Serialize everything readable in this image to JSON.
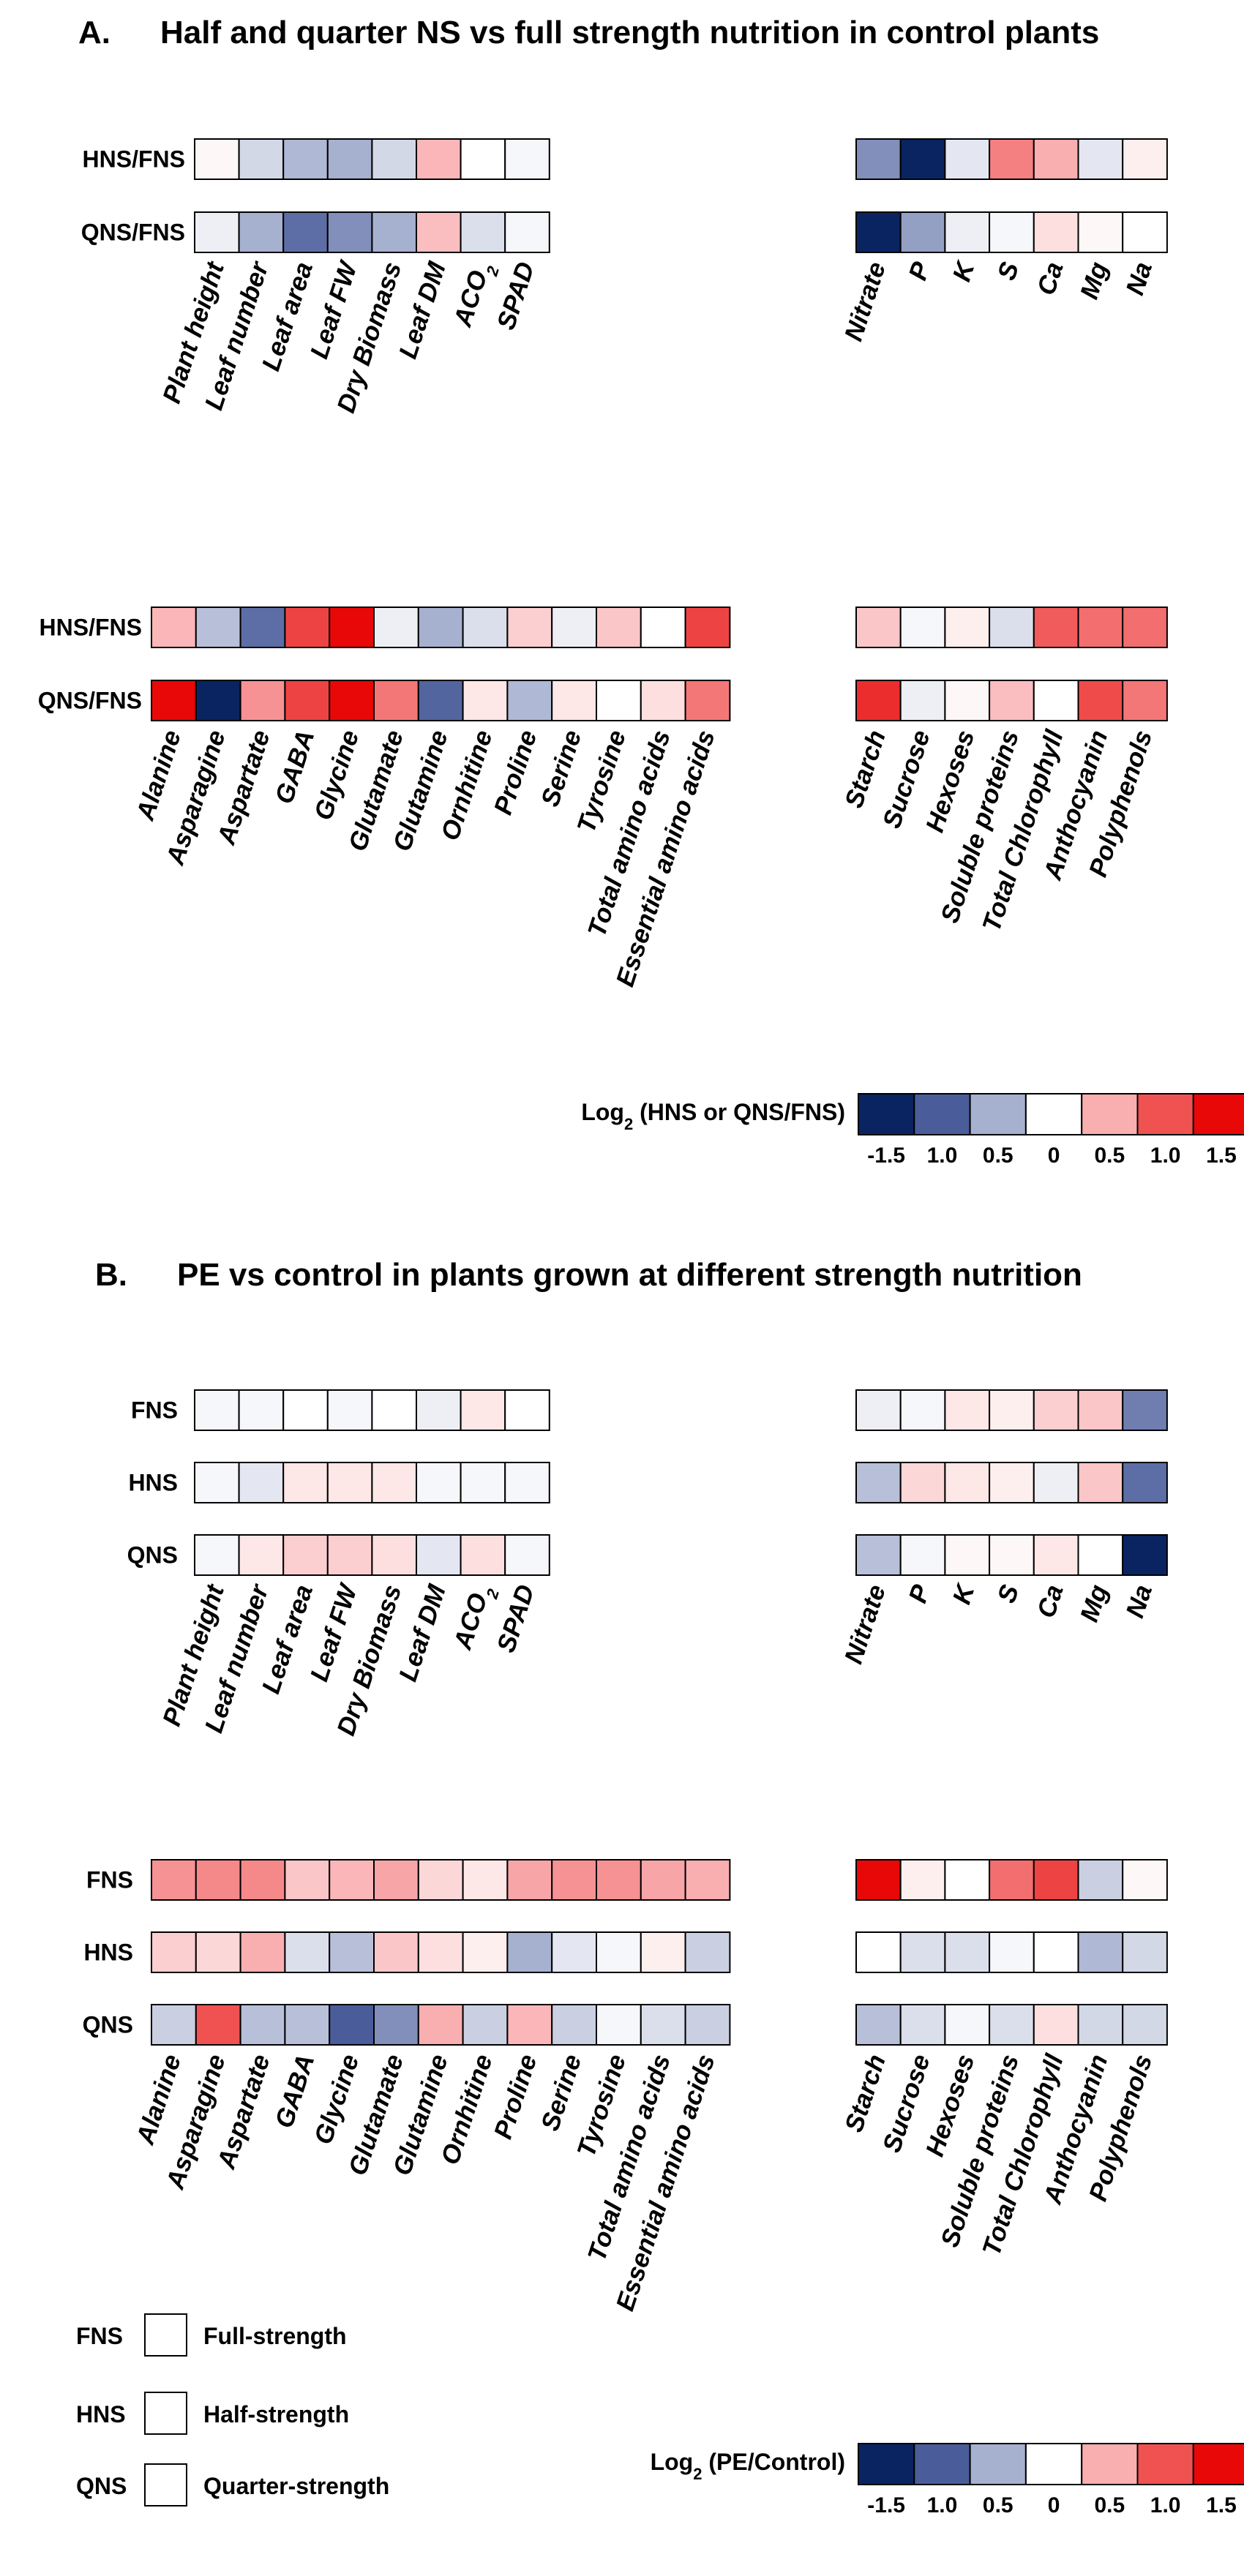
{
  "chart_data": [
    {
      "type": "heatmap",
      "panel": "A.",
      "title": "Half and quarter NS vs full strength nutrition in control plants",
      "blocks": [
        {
          "id": "A-growth",
          "rows": [
            "HNS/FNS",
            "QNS/FNS"
          ],
          "columns": [
            "Plant height",
            "Leaf number",
            "Leaf area",
            "Leaf FW",
            "Dry Biomass",
            "Leaf DM",
            "ACO2",
            "SPAD"
          ],
          "values": [
            [
              0.05,
              -0.25,
              -0.45,
              -0.5,
              -0.25,
              0.45,
              0.0,
              -0.05
            ],
            [
              -0.1,
              -0.5,
              -0.9,
              -0.7,
              -0.5,
              0.4,
              -0.2,
              -0.05
            ]
          ]
        },
        {
          "id": "A-minerals",
          "rows": [
            "HNS/FNS",
            "QNS/FNS"
          ],
          "columns": [
            "Nitrate",
            "P",
            "K",
            "S",
            "Ca",
            "Mg",
            "Na"
          ],
          "values": [
            [
              -0.7,
              -1.5,
              -0.15,
              0.75,
              0.5,
              -0.15,
              0.1
            ],
            [
              -1.5,
              -0.6,
              -0.1,
              -0.05,
              0.2,
              0.05,
              0.0
            ]
          ]
        },
        {
          "id": "A-aminoacids",
          "rows": [
            "HNS/FNS",
            "QNS/FNS"
          ],
          "columns": [
            "Alanine",
            "Asparagine",
            "Aspartate",
            "GABA",
            "Glycine",
            "Glutamate",
            "Glutamine",
            "Ornhitine",
            "Proline",
            "Serine",
            "Tyrosine",
            "Total amino acids",
            "Essential amino acids"
          ],
          "values": [
            [
              0.45,
              -0.4,
              -0.9,
              1.1,
              1.5,
              -0.1,
              -0.5,
              -0.2,
              0.3,
              -0.1,
              0.35,
              0.0,
              1.1
            ],
            [
              1.5,
              -1.5,
              0.65,
              1.1,
              1.5,
              0.8,
              -0.95,
              0.15,
              -0.45,
              0.15,
              0.0,
              0.2,
              0.8
            ]
          ]
        },
        {
          "id": "A-metabolites",
          "rows": [
            "HNS/FNS",
            "QNS/FNS"
          ],
          "columns": [
            "Starch",
            "Sucrose",
            "Hexoses",
            "Soluble proteins",
            "Total Chlorophyll",
            "Anthocyanin",
            "Polyphenols"
          ],
          "values": [
            [
              0.35,
              -0.05,
              0.1,
              -0.2,
              0.95,
              0.85,
              0.85
            ],
            [
              1.25,
              -0.1,
              0.05,
              0.4,
              0.0,
              1.05,
              0.8
            ]
          ]
        }
      ],
      "legend": {
        "title_main": "Log",
        "title_sub": "2",
        "title_rest": " (HNS or QNS/FNS)",
        "ticks": [
          "-1.5",
          "1.0",
          "0.5",
          "0",
          "0.5",
          "1.0",
          "1.5"
        ]
      }
    },
    {
      "type": "heatmap",
      "panel": "B.",
      "title": "PE vs control in plants grown at different strength nutrition",
      "blocks": [
        {
          "id": "B-growth",
          "rows": [
            "FNS",
            "HNS",
            "QNS"
          ],
          "columns": [
            "Plant height",
            "Leaf number",
            "Leaf area",
            "Leaf FW",
            "Dry Biomass",
            "Leaf DM",
            "ACO2",
            "SPAD"
          ],
          "values": [
            [
              -0.05,
              -0.05,
              0.0,
              -0.05,
              0.0,
              -0.1,
              0.15,
              0.0
            ],
            [
              -0.05,
              -0.15,
              0.15,
              0.15,
              0.15,
              -0.05,
              -0.05,
              -0.05
            ],
            [
              -0.05,
              0.15,
              0.3,
              0.3,
              0.2,
              -0.15,
              0.2,
              -0.05
            ]
          ]
        },
        {
          "id": "B-minerals",
          "rows": [
            "FNS",
            "HNS",
            "QNS"
          ],
          "columns": [
            "Nitrate",
            "P",
            "K",
            "S",
            "Ca",
            "Mg",
            "Na"
          ],
          "values": [
            [
              -0.1,
              -0.05,
              0.15,
              0.1,
              0.3,
              0.35,
              -0.8
            ],
            [
              -0.4,
              0.25,
              0.15,
              0.1,
              -0.1,
              0.35,
              -0.9
            ],
            [
              -0.4,
              -0.05,
              0.05,
              0.05,
              0.15,
              0.0,
              -1.5
            ]
          ]
        },
        {
          "id": "B-aminoacids",
          "rows": [
            "FNS",
            "HNS",
            "QNS"
          ],
          "columns": [
            "Alanine",
            "Asparagine",
            "Aspartate",
            "GABA",
            "Glycine",
            "Glutamate",
            "Glutamine",
            "Ornhitine",
            "Proline",
            "Serine",
            "Tyrosine",
            "Total amino acids",
            "Essential amino acids"
          ],
          "values": [
            [
              0.65,
              0.7,
              0.7,
              0.35,
              0.45,
              0.55,
              0.25,
              0.15,
              0.55,
              0.65,
              0.65,
              0.55,
              0.5
            ],
            [
              0.3,
              0.25,
              0.5,
              -0.2,
              -0.4,
              0.35,
              0.2,
              0.1,
              -0.5,
              -0.15,
              -0.05,
              0.1,
              -0.3
            ],
            [
              -0.3,
              1.0,
              -0.4,
              -0.4,
              -1.0,
              -0.7,
              0.5,
              -0.3,
              0.45,
              -0.3,
              -0.05,
              -0.2,
              -0.3
            ]
          ]
        },
        {
          "id": "B-metabolites",
          "rows": [
            "FNS",
            "HNS",
            "QNS"
          ],
          "columns": [
            "Starch",
            "Sucrose",
            "Hexoses",
            "Soluble proteins",
            "Total Chlorophyll",
            "Anthocyanin",
            "Polyphenols"
          ],
          "values": [
            [
              1.5,
              0.1,
              0.0,
              0.85,
              1.1,
              -0.3,
              0.05
            ],
            [
              0.0,
              -0.2,
              -0.2,
              -0.05,
              0.0,
              -0.45,
              -0.25
            ],
            [
              -0.4,
              -0.2,
              -0.05,
              -0.2,
              0.2,
              -0.25,
              -0.25
            ]
          ]
        }
      ],
      "legend": {
        "title_main": "Log",
        "title_sub": "2",
        "title_rest": " (PE/Control)",
        "ticks": [
          "-1.5",
          "1.0",
          "0.5",
          "0",
          "0.5",
          "1.0",
          "1.5"
        ]
      }
    }
  ],
  "legend_scale_colors": [
    "#0a2461",
    "#4a5d9a",
    "#a6b0cf",
    "#ffffff",
    "#f9aeb0",
    "#f05252",
    "#e80808"
  ],
  "nutrition_key": [
    {
      "abbr": "FNS",
      "label": "Full-strength"
    },
    {
      "abbr": "HNS",
      "label": "Half-strength"
    },
    {
      "abbr": "QNS",
      "label": "Quarter-strength"
    }
  ]
}
